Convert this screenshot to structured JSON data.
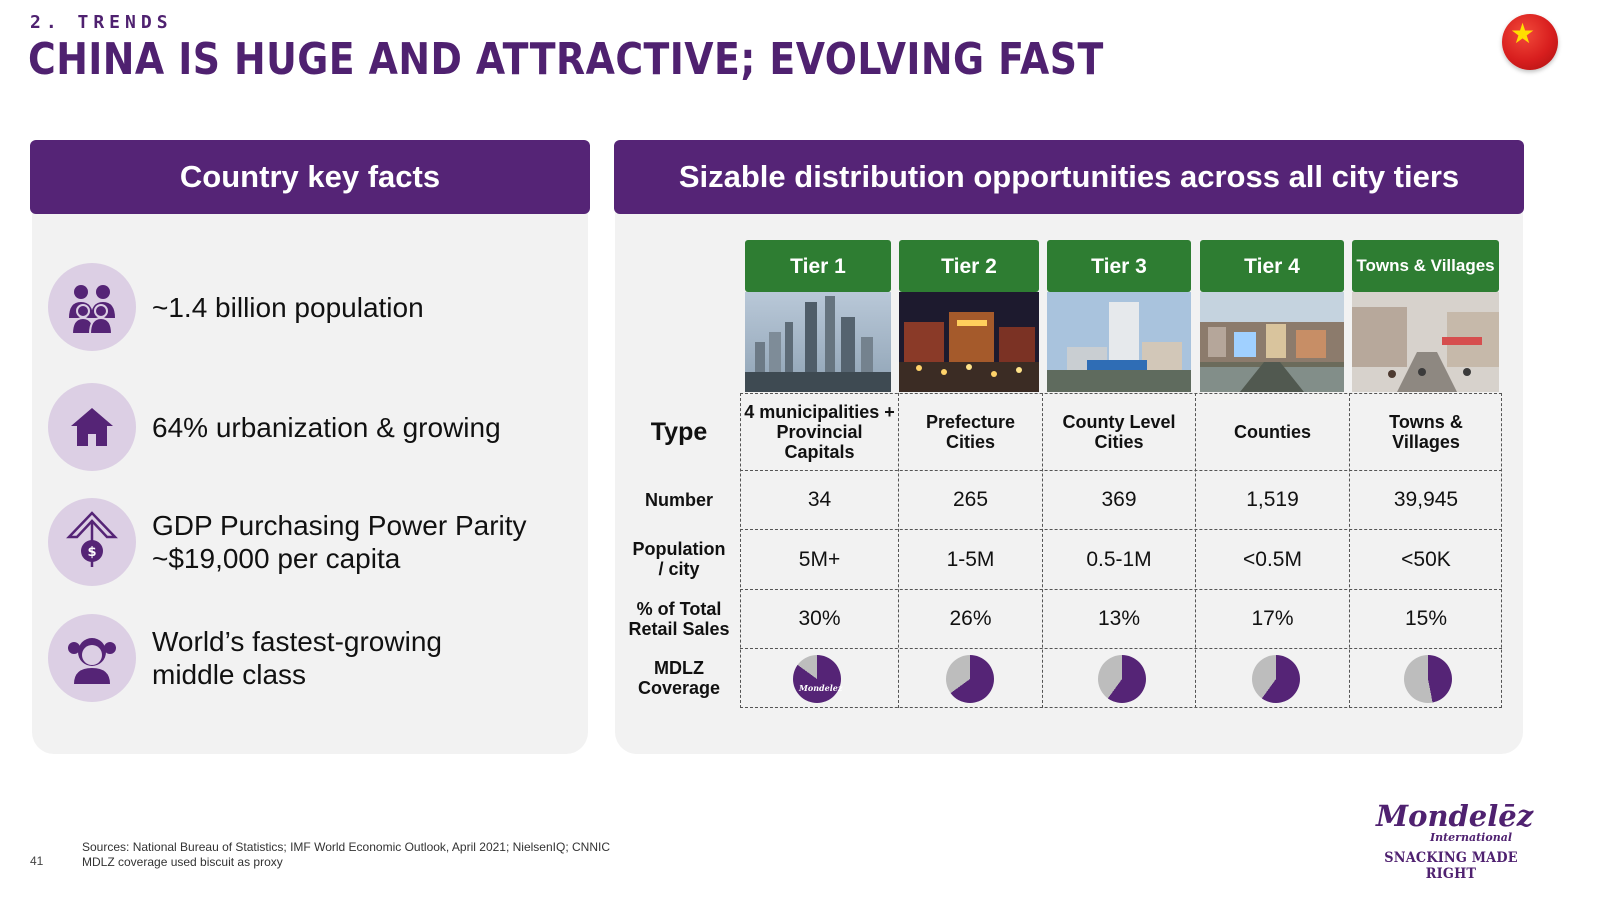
{
  "header": {
    "kicker": "2. TRENDS",
    "title": "CHINA IS HUGE AND ATTRACTIVE; EVOLVING FAST",
    "flag_icon": "china-flag-icon"
  },
  "left_panel": {
    "title": "Country key facts",
    "facts": [
      {
        "icon": "family-icon",
        "text": "~1.4 billion population"
      },
      {
        "icon": "house-icon",
        "text": "64% urbanization & growing"
      },
      {
        "icon": "money-growth-icon",
        "text": "GDP Purchasing Power Parity ~$19,000 per capita"
      },
      {
        "icon": "girl-icon",
        "text": "World’s fastest-growing middle class"
      }
    ]
  },
  "right_panel": {
    "title": "Sizable distribution opportunities across all city tiers",
    "tiers": [
      "Tier 1",
      "Tier 2",
      "Tier 3",
      "Tier 4",
      "Towns & Villages"
    ],
    "row_labels": {
      "type": "Type",
      "number": "Number",
      "population": "Population / city",
      "retail_sales": "% of Total Retail Sales",
      "coverage": "MDLZ Coverage"
    },
    "rows": {
      "type": [
        "4 municipalities + Provincial Capitals",
        "Prefecture Cities",
        "County Level Cities",
        "Counties",
        "Towns & Villages"
      ],
      "number": [
        "34",
        "265",
        "369",
        "1,519",
        "39,945"
      ],
      "population": [
        "5M+",
        "1-5M",
        "0.5-1M",
        "<0.5M",
        "<50K"
      ],
      "retail_sales": [
        "30%",
        "26%",
        "13%",
        "17%",
        "15%"
      ]
    },
    "coverage_fractions": [
      0.85,
      0.65,
      0.6,
      0.6,
      0.47
    ],
    "coverage_logo": "Mondelez",
    "colors": {
      "purple": "#552476",
      "green": "#2e7d32",
      "grey": "#bdbdbd"
    }
  },
  "footer": {
    "page_number": "41",
    "sources_line1": "Sources: National Bureau of Statistics; IMF World Economic Outlook, April 2021; NielsenIQ; CNNIC",
    "sources_line2": "MDLZ coverage used biscuit as proxy",
    "logo_main": "Mondelēz",
    "logo_sub": "International",
    "tagline": "SNACKING MADE RIGHT"
  }
}
